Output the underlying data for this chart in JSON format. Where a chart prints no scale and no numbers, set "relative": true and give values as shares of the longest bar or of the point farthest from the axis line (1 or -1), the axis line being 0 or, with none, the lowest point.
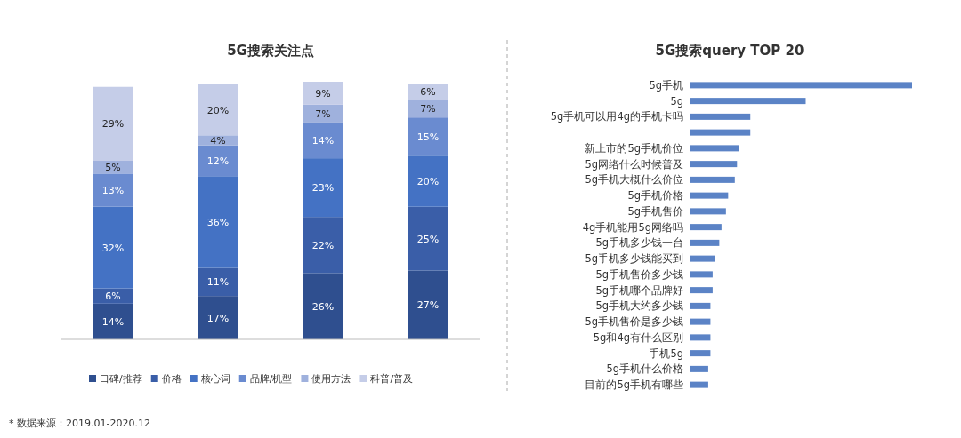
{
  "chart_data": [
    {
      "type": "bar",
      "title": "5G搜索关注点",
      "stacked": true,
      "legend": "bottom",
      "categories": [
        null,
        null,
        null,
        null
      ],
      "series": [
        {
          "name": "口碑/推荐",
          "color": "#2f4f8f",
          "values": [
            14,
            17,
            26,
            27
          ],
          "value_labels": [
            "14%",
            "17%",
            "26%",
            "27%"
          ]
        },
        {
          "name": "价格",
          "color": "#3a5ea8",
          "values": [
            6,
            11,
            22,
            25
          ],
          "value_labels": [
            "6%",
            "11%",
            "22%",
            "25%"
          ]
        },
        {
          "name": "核心词",
          "color": "#4472c4",
          "values": [
            32,
            36,
            23,
            20
          ],
          "value_labels": [
            "32%",
            "36%",
            "23%",
            "20%"
          ]
        },
        {
          "name": "品牌/机型",
          "color": "#6a8bd0",
          "values": [
            13,
            12,
            14,
            15
          ],
          "value_labels": [
            "13%",
            "12%",
            "14%",
            "15%"
          ]
        },
        {
          "name": "使用方法",
          "color": "#9fb1dd",
          "values": [
            5,
            4,
            7,
            7
          ],
          "value_labels": [
            "5%",
            "4%",
            "7%",
            "7%"
          ]
        },
        {
          "name": "科普/普及",
          "color": "#c5cde8",
          "values": [
            29,
            20,
            9,
            6
          ],
          "value_labels": [
            "29%",
            "20%",
            "9%",
            "6%"
          ]
        }
      ],
      "annotations": [
        "* 数据来源：2019.01-2020.12"
      ]
    },
    {
      "type": "bar",
      "title": "5G搜索query TOP 20",
      "orientation": "horizontal",
      "relative": true,
      "color": "#5b83c6",
      "categories": [
        "5g手机",
        "5g",
        "5g手机可以用4g的手机卡吗",
        null,
        "新上市的5g手机价位",
        "5g网络什么时候普及",
        "5g手机大概什么价位",
        "5g手机价格",
        "5g手机售价",
        "4g手机能用5g网络吗",
        "5g手机多少钱一台",
        "5g手机多少钱能买到",
        "5g手机售价多少钱",
        "5g手机哪个品牌好",
        "5g手机大约多少钱",
        "5g手机售价是多少钱",
        "5g和4g有什么区别",
        "手机5g",
        "5g手机什么价格",
        "目前的5g手机有哪些"
      ],
      "values": [
        1,
        0.52,
        0.27,
        0.27,
        0.22,
        0.21,
        0.2,
        0.17,
        0.16,
        0.14,
        0.13,
        0.11,
        0.1,
        0.1,
        0.09,
        0.09,
        0.09,
        0.09,
        0.08,
        0.08
      ]
    }
  ]
}
